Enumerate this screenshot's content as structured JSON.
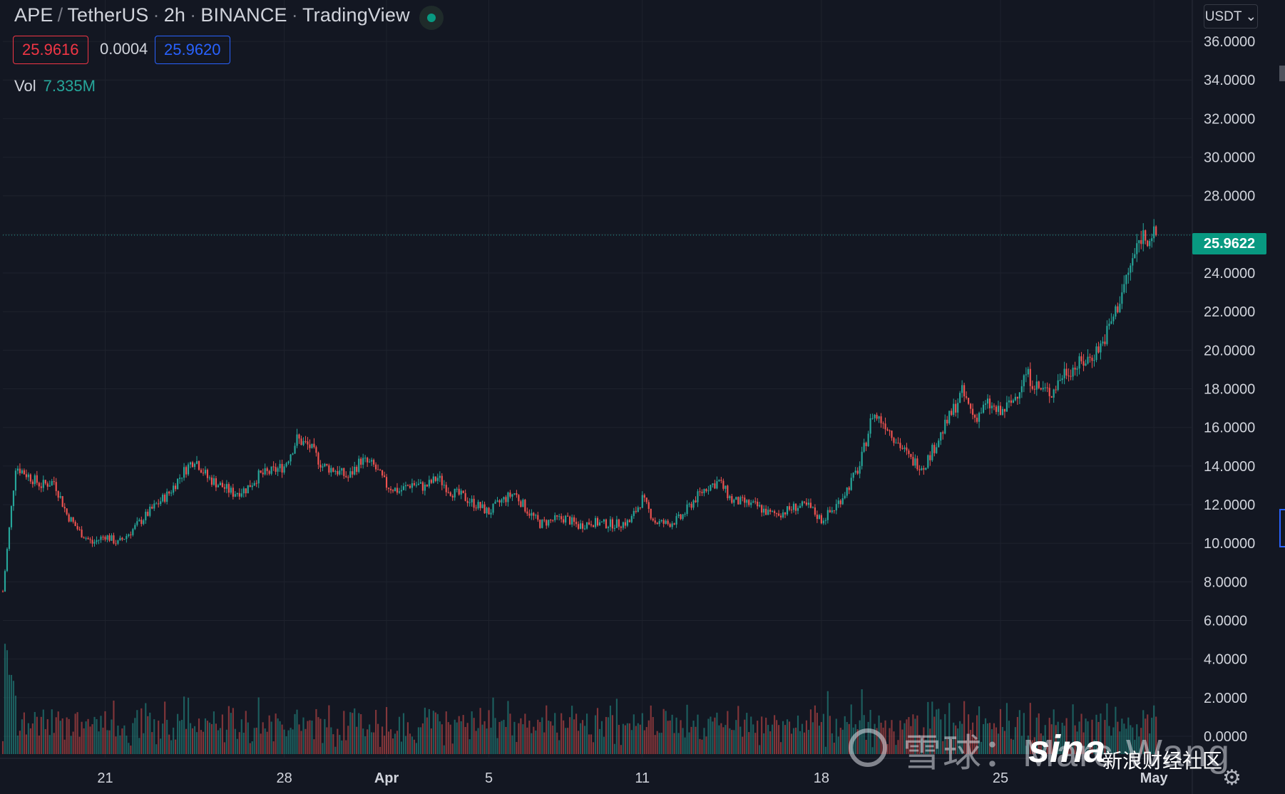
{
  "header": {
    "symbol": "APE",
    "pair": "TetherUS",
    "interval": "2h",
    "exchange": "BINANCE",
    "source": "TradingView"
  },
  "quote": {
    "bid": "25.9616",
    "spread": "0.0004",
    "ask": "25.9620"
  },
  "volume": {
    "label": "Vol",
    "value": "7.335M"
  },
  "currency_button": "USDT",
  "last_price_label": "25.9622",
  "watermark": {
    "xueqiu": "雪球：Marc Wang",
    "sina": "sina",
    "sina_sub": "新浪财经社区"
  },
  "colors": {
    "background": "#131722",
    "up": "#26a69a",
    "down": "#ef5350",
    "grid": "#1e222d",
    "text": "#d1d4dc",
    "price_tag": "#089981"
  },
  "chart_data": {
    "type": "candlestick",
    "title": "APE / TetherUS · 2h · BINANCE · TradingView",
    "ylabel": "",
    "xlabel": "",
    "ylim": [
      0,
      37
    ],
    "y_ticks": [
      "36.0000",
      "34.0000",
      "32.0000",
      "30.0000",
      "28.0000",
      "24.0000",
      "22.0000",
      "20.0000",
      "18.0000",
      "16.0000",
      "14.0000",
      "12.0000",
      "10.0000",
      "8.0000",
      "6.0000",
      "4.0000",
      "2.0000",
      "0.0000"
    ],
    "y_tick_values": [
      36,
      34,
      32,
      30,
      28,
      24,
      22,
      20,
      18,
      16,
      14,
      12,
      10,
      8,
      6,
      4,
      2,
      0
    ],
    "x_tick_labels": [
      "21",
      "28",
      "Apr",
      "5",
      "11",
      "18",
      "25",
      "May"
    ],
    "x_tick_dates": [
      "2022-03-21",
      "2022-03-28",
      "2022-04-01",
      "2022-04-05",
      "2022-04-11",
      "2022-04-18",
      "2022-04-25",
      "2022-05-01"
    ],
    "x_range": [
      "2022-03-17T00:00",
      "2022-05-02T12:00"
    ],
    "last_price": 25.9622,
    "grid": true,
    "series_close": {
      "dates": [
        "2022-03-17T00:00",
        "2022-03-17T12:00",
        "2022-03-18T00:00",
        "2022-03-18T12:00",
        "2022-03-19T00:00",
        "2022-03-19T12:00",
        "2022-03-20T00:00",
        "2022-03-20T12:00",
        "2022-03-21T00:00",
        "2022-03-21T12:00",
        "2022-03-22T00:00",
        "2022-03-22T12:00",
        "2022-03-23T00:00",
        "2022-03-23T12:00",
        "2022-03-24T00:00",
        "2022-03-24T12:00",
        "2022-03-25T00:00",
        "2022-03-25T12:00",
        "2022-03-26T00:00",
        "2022-03-26T12:00",
        "2022-03-27T00:00",
        "2022-03-27T12:00",
        "2022-03-28T00:00",
        "2022-03-28T12:00",
        "2022-03-29T00:00",
        "2022-03-29T12:00",
        "2022-03-30T00:00",
        "2022-03-30T12:00",
        "2022-03-31T00:00",
        "2022-03-31T12:00",
        "2022-04-01T00:00",
        "2022-04-01T12:00",
        "2022-04-02T00:00",
        "2022-04-02T12:00",
        "2022-04-03T00:00",
        "2022-04-03T12:00",
        "2022-04-04T00:00",
        "2022-04-04T12:00",
        "2022-04-05T00:00",
        "2022-04-05T12:00",
        "2022-04-06T00:00",
        "2022-04-06T12:00",
        "2022-04-07T00:00",
        "2022-04-07T12:00",
        "2022-04-08T00:00",
        "2022-04-08T12:00",
        "2022-04-09T00:00",
        "2022-04-09T12:00",
        "2022-04-10T00:00",
        "2022-04-10T12:00",
        "2022-04-11T00:00",
        "2022-04-11T12:00",
        "2022-04-12T00:00",
        "2022-04-12T12:00",
        "2022-04-13T00:00",
        "2022-04-13T12:00",
        "2022-04-14T00:00",
        "2022-04-14T12:00",
        "2022-04-15T00:00",
        "2022-04-15T12:00",
        "2022-04-16T00:00",
        "2022-04-16T12:00",
        "2022-04-17T00:00",
        "2022-04-17T12:00",
        "2022-04-18T00:00",
        "2022-04-18T12:00",
        "2022-04-19T00:00",
        "2022-04-19T12:00",
        "2022-04-20T00:00",
        "2022-04-20T12:00",
        "2022-04-21T00:00",
        "2022-04-21T12:00",
        "2022-04-22T00:00",
        "2022-04-22T12:00",
        "2022-04-23T00:00",
        "2022-04-23T12:00",
        "2022-04-24T00:00",
        "2022-04-24T12:00",
        "2022-04-25T00:00",
        "2022-04-25T12:00",
        "2022-04-26T00:00",
        "2022-04-26T12:00",
        "2022-04-27T00:00",
        "2022-04-27T12:00",
        "2022-04-28T00:00",
        "2022-04-28T12:00",
        "2022-04-29T00:00",
        "2022-04-29T12:00",
        "2022-04-30T00:00",
        "2022-04-30T12:00",
        "2022-05-01T00:00"
      ],
      "values": [
        7.5,
        14.0,
        13.5,
        13.0,
        13.2,
        11.5,
        10.6,
        10.0,
        10.4,
        10.0,
        10.6,
        11.3,
        12.0,
        12.6,
        13.6,
        14.4,
        13.4,
        13.0,
        12.6,
        12.8,
        13.5,
        13.7,
        14.0,
        15.4,
        15.0,
        14.0,
        13.8,
        13.4,
        14.3,
        14.0,
        13.0,
        12.7,
        13.1,
        12.9,
        13.4,
        12.7,
        12.4,
        12.0,
        11.6,
        12.2,
        12.6,
        11.7,
        11.0,
        11.2,
        11.3,
        10.9,
        11.1,
        11.0,
        11.0,
        11.1,
        12.3,
        11.1,
        11.0,
        11.3,
        12.2,
        12.9,
        13.2,
        12.2,
        12.1,
        11.9,
        11.5,
        11.6,
        11.9,
        11.9,
        11.2,
        11.8,
        12.8,
        14.0,
        16.7,
        16.2,
        15.2,
        14.3,
        14.0,
        15.2,
        16.5,
        17.8,
        16.5,
        17.2,
        16.7,
        17.4,
        18.8,
        18.0,
        17.8,
        18.9,
        19.2,
        19.6,
        20.4,
        22.0,
        24.0,
        25.96,
        25.96
      ]
    },
    "annotations": []
  }
}
